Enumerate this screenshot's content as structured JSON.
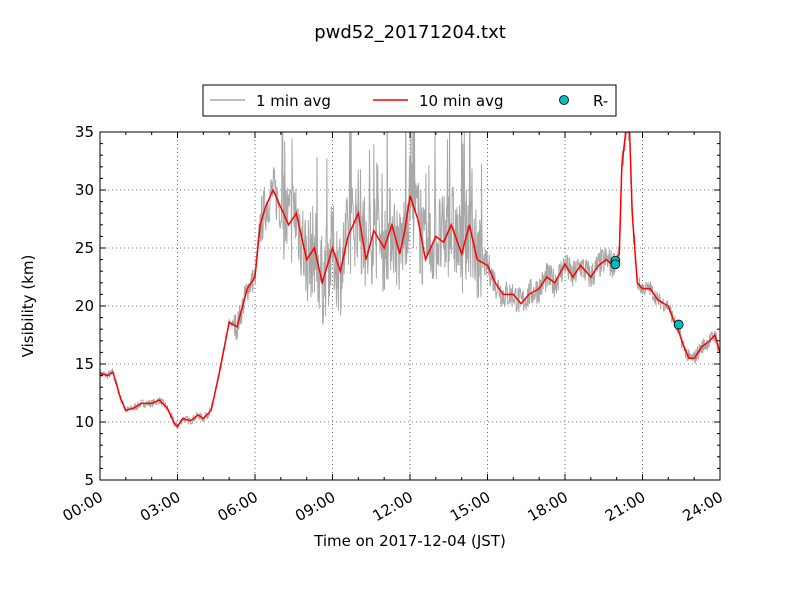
{
  "chart_data": {
    "type": "line",
    "title": "pwd52_20171204.txt",
    "xlabel": "Time on 2017-12-04 (JST)",
    "ylabel": "Visibility (km)",
    "xlim": [
      0,
      24
    ],
    "ylim": [
      5,
      35
    ],
    "x_ticks": [
      "00:00",
      "03:00",
      "06:00",
      "09:00",
      "12:00",
      "15:00",
      "18:00",
      "21:00",
      "24:00"
    ],
    "y_ticks": [
      "5",
      "10",
      "15",
      "20",
      "25",
      "30",
      "35"
    ],
    "grid": true,
    "legend_position": "top-center",
    "legend": [
      "1 min avg",
      "10 min avg",
      "R-"
    ],
    "series": [
      {
        "name": "10 min avg",
        "color": "#ff0000",
        "x": [
          0,
          0.3,
          0.5,
          0.8,
          1.0,
          1.3,
          1.6,
          2.0,
          2.3,
          2.6,
          2.9,
          3.0,
          3.2,
          3.5,
          3.8,
          4.0,
          4.3,
          4.6,
          5.0,
          5.3,
          5.5,
          5.7,
          6.0,
          6.2,
          6.4,
          6.5,
          6.7,
          7.0,
          7.3,
          7.6,
          8.0,
          8.3,
          8.6,
          9.0,
          9.3,
          9.6,
          10.0,
          10.3,
          10.6,
          11.0,
          11.3,
          11.6,
          11.8,
          12.0,
          12.3,
          12.6,
          13.0,
          13.3,
          13.6,
          14.0,
          14.3,
          14.6,
          15.0,
          15.3,
          15.6,
          16.0,
          16.3,
          16.6,
          17.0,
          17.3,
          17.6,
          18.0,
          18.3,
          18.6,
          19.0,
          19.3,
          19.6,
          19.85,
          19.95,
          20.1,
          20.2,
          20.35,
          20.5,
          20.6,
          20.8,
          21.0,
          21.3,
          21.6,
          22.0,
          22.2,
          22.4,
          22.6,
          22.8,
          23.0,
          23.3,
          23.6,
          23.8,
          24.0
        ],
        "values": [
          14.2,
          14.0,
          14.3,
          12.0,
          11.0,
          11.2,
          11.6,
          11.6,
          11.9,
          11.2,
          9.8,
          9.6,
          10.3,
          10.1,
          10.6,
          10.3,
          11.0,
          14.0,
          18.6,
          18.2,
          19.8,
          21.5,
          22.5,
          27.0,
          28.5,
          29.0,
          30.0,
          28.5,
          27.0,
          28.0,
          24.0,
          25.0,
          22.0,
          25.0,
          23.0,
          26.0,
          28.0,
          24.0,
          26.5,
          25.0,
          27.0,
          24.5,
          26.5,
          29.5,
          27.5,
          24.0,
          26.0,
          25.5,
          27.0,
          24.5,
          27.0,
          24.0,
          23.5,
          22.0,
          21.0,
          21.0,
          20.2,
          21.0,
          21.5,
          22.5,
          22.0,
          23.6,
          22.5,
          23.5,
          22.5,
          23.5,
          24.0,
          23.5,
          24.0,
          24.5,
          32.0,
          35.0,
          35.0,
          28.0,
          22.0,
          21.5,
          21.5,
          20.5,
          20.0,
          18.8,
          17.8,
          16.5,
          15.5,
          15.5,
          16.5,
          17.0,
          17.5,
          16.0
        ]
      },
      {
        "name": "R-",
        "color": "#00bfbf",
        "marker": "circle",
        "x": [
          19.95,
          19.95,
          22.4
        ],
        "values": [
          23.9,
          23.6,
          18.4
        ]
      }
    ]
  }
}
